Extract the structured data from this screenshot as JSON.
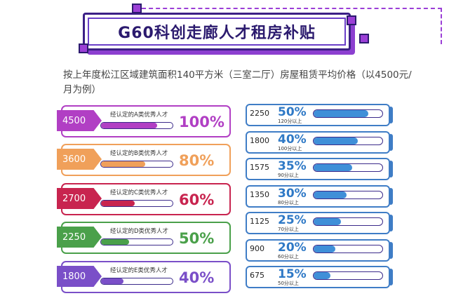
{
  "title": "G60科创走廊人才租房补贴",
  "intro": "按上年度松江区域建筑面积140平方米（三室二厅）房屋租赁平均价格（以4500元/月为例）",
  "colors": {
    "banner": "#3b1f86",
    "accent": "#9b3fd6",
    "right": "#3f7dc6"
  },
  "left_cards": [
    {
      "amount": "4500",
      "label": "经认定的A类优秀人才",
      "percent": "100%",
      "level": 1.0,
      "color": "#b13fc4",
      "fill": "#b13fc4"
    },
    {
      "amount": "3600",
      "label": "经认定的B类优秀人才",
      "percent": "80%",
      "level": 0.8,
      "color": "#f0a05a",
      "fill": "#f0a05a"
    },
    {
      "amount": "2700",
      "label": "经认定的C类优秀人才",
      "percent": "60%",
      "level": 0.6,
      "color": "#c8244f",
      "fill": "#c8244f"
    },
    {
      "amount": "2250",
      "label": "经认定的D类优秀人才",
      "percent": "50%",
      "level": 0.5,
      "color": "#4aa04a",
      "fill": "#4aa04a"
    },
    {
      "amount": "1800",
      "label": "经认定的E类优秀人才",
      "percent": "40%",
      "level": 0.4,
      "color": "#7a4fc8",
      "fill": "#7a4fc8"
    }
  ],
  "right_cards": [
    {
      "amount": "2250",
      "percent": "50%",
      "sub": "120分以上",
      "level": 0.5
    },
    {
      "amount": "1800",
      "percent": "40%",
      "sub": "100分以上",
      "level": 0.4
    },
    {
      "amount": "1575",
      "percent": "35%",
      "sub": "90分以上",
      "level": 0.35
    },
    {
      "amount": "1350",
      "percent": "30%",
      "sub": "80分以上",
      "level": 0.3
    },
    {
      "amount": "1125",
      "percent": "25%",
      "sub": "70分以上",
      "level": 0.25
    },
    {
      "amount": "900",
      "percent": "20%",
      "sub": "60分以上",
      "level": 0.2
    },
    {
      "amount": "675",
      "percent": "15%",
      "sub": "50分以上",
      "level": 0.15
    }
  ]
}
